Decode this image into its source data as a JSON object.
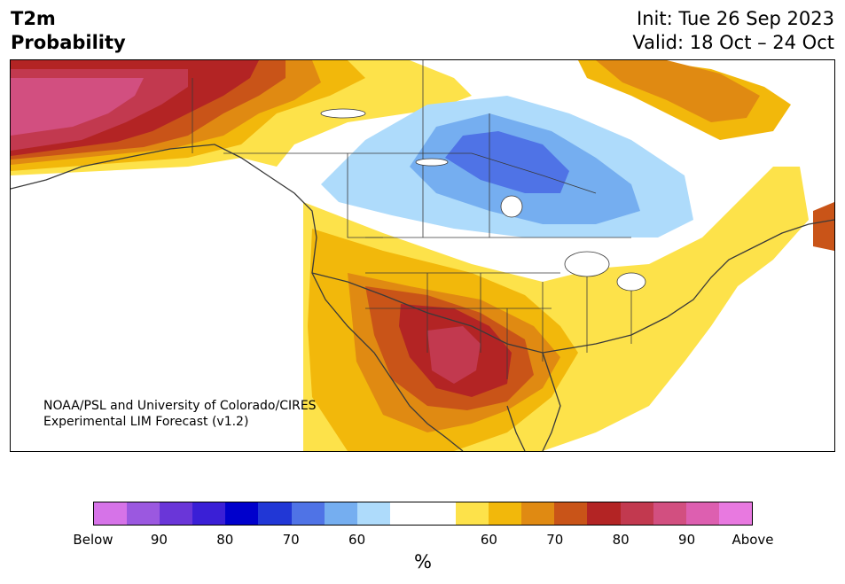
{
  "title": {
    "line1": "T2m",
    "line2": "Probability"
  },
  "dates": {
    "init": "Init: Tue 26 Sep 2023",
    "valid": "Valid: 18 Oct – 24 Oct"
  },
  "credit": {
    "line1": "NOAA/PSL and University of Colorado/CIRES",
    "line2": "Experimental LIM Forecast (v1.2)"
  },
  "colorbar": {
    "unit": "%",
    "colors": [
      "#d673e8",
      "#9b58e0",
      "#6a36d8",
      "#3a1fd6",
      "#0000cc",
      "#2137d6",
      "#4f73e6",
      "#75aef0",
      "#aedbfb",
      "#ffffff",
      "#ffffff",
      "#fde24a",
      "#f2b80b",
      "#e08a12",
      "#c95418",
      "#b32424",
      "#c2394f",
      "#d24f80",
      "#dd5fb0",
      "#e879e0"
    ],
    "ticks": [
      "Below",
      "90",
      "80",
      "70",
      "60",
      "60",
      "70",
      "80",
      "90",
      "Above"
    ]
  },
  "legend_meaning": {
    "cool_colors": "Below",
    "warm_colors": "Above"
  }
}
